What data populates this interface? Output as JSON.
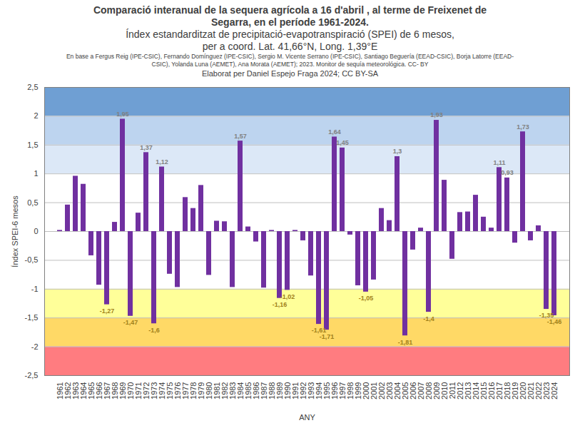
{
  "chart_data": {
    "type": "bar",
    "title": "Comparació interanual de la sequera agrícola a 16 d'abril , al terme de Freixenet de Segarra, en el període 1961-2024.",
    "subtitle": [
      "Índex estandarditzat de precipitació-evapotranspiració (SPEI) de 6 mesos,",
      "per a coord. Lat. 41,66°N, Long. 1,39°E"
    ],
    "credits": [
      "En base a Fergus Reig (IPE-CSIC), Fernando Domínguez (IPE-CSIC), Sergio M. Vicente Serrano (IPE-CSIC), Santiago Beguería (EEAD-CSIC), Borja Latorre (EEAD-CSIC), Yolanda Luna (AEMET), Ana Morata (AEMET); 2023. Monitor de sequía meteorológica. CC- BY",
      "Elaborat per Daniel Espejo Fraga 2024; CC BY-SA"
    ],
    "x_label": "ANY",
    "y_label": "Índex SPEI-6 mesos",
    "categories": [
      1961,
      1962,
      1963,
      1964,
      1965,
      1966,
      1967,
      1968,
      1969,
      1970,
      1971,
      1972,
      1973,
      1974,
      1975,
      1976,
      1977,
      1978,
      1979,
      1980,
      1981,
      1982,
      1983,
      1984,
      1985,
      1986,
      1987,
      1988,
      1989,
      1990,
      1991,
      1992,
      1993,
      1994,
      1995,
      1996,
      1997,
      1998,
      1999,
      2000,
      2001,
      2002,
      2003,
      2004,
      2005,
      2006,
      2007,
      2008,
      2009,
      2010,
      2011,
      2012,
      2013,
      2014,
      2015,
      2016,
      2017,
      2018,
      2019,
      2020,
      2021,
      2022,
      2023,
      2024
    ],
    "values": [
      0.02,
      0.46,
      0.96,
      0.82,
      -0.42,
      -0.93,
      -1.27,
      0.16,
      1.95,
      -1.47,
      0.32,
      1.37,
      -1.6,
      1.12,
      -0.74,
      -0.97,
      0.59,
      0.4,
      0.8,
      -0.76,
      0.18,
      0.17,
      -0.97,
      1.57,
      0.08,
      -0.18,
      -0.98,
      0.02,
      -1.16,
      -1.02,
      0.02,
      -0.16,
      -0.77,
      -1.61,
      -1.71,
      1.64,
      1.45,
      -0.06,
      -0.94,
      -1.05,
      -0.84,
      0.4,
      0.19,
      1.3,
      -1.81,
      -0.32,
      0.06,
      -1.4,
      1.93,
      0.89,
      -0.48,
      0.33,
      0.34,
      0.63,
      0.25,
      0.06,
      1.11,
      0.93,
      -0.2,
      1.73,
      -0.16,
      0.1,
      -1.35,
      -1.46
    ],
    "value_labels": [
      null,
      null,
      null,
      null,
      null,
      null,
      "-1,27",
      null,
      "1,95",
      "-1,47",
      null,
      "1,37",
      "-1,6",
      "1,12",
      null,
      null,
      null,
      null,
      null,
      null,
      null,
      null,
      null,
      "1,57",
      null,
      null,
      null,
      null,
      "-1,16",
      "-1,02",
      null,
      null,
      null,
      "-1,61",
      "-1,71",
      "1,64",
      "1,45",
      null,
      null,
      "-1,05",
      null,
      null,
      null,
      "1,3",
      "-1,81",
      null,
      null,
      "-1,4",
      "1,93",
      null,
      null,
      null,
      null,
      null,
      null,
      null,
      "1,11",
      "0,93",
      null,
      "1,73",
      null,
      null,
      "-1,35",
      "-1,46"
    ],
    "color": "#7030a0",
    "ylim": [
      -2.5,
      2.5
    ],
    "yticks": [
      {
        "value": -2.5,
        "label": "-2,5"
      },
      -2,
      {
        "value": -1.5,
        "label": "-1,5"
      },
      -1,
      {
        "value": -0.5,
        "label": "-0,5"
      },
      0,
      {
        "value": 0.5,
        "label": "0,5"
      },
      1,
      {
        "value": 1.5,
        "label": "1,5"
      },
      2,
      {
        "value": 2.5,
        "label": "2,5"
      }
    ],
    "grid": true,
    "data_labels": true,
    "bands": [
      {
        "from": 2,
        "to": 2.5,
        "color": "#6f9fd3"
      },
      {
        "from": 1.5,
        "to": 2,
        "color": "#bdd4ef"
      },
      {
        "from": 1,
        "to": 1.5,
        "color": "#dce8f7"
      },
      {
        "from": -1.5,
        "to": -1,
        "color": "#ffff99"
      },
      {
        "from": -2,
        "to": -1.5,
        "color": "#ffd966"
      },
      {
        "from": -2.5,
        "to": -2,
        "color": "#ff7c80"
      }
    ]
  }
}
